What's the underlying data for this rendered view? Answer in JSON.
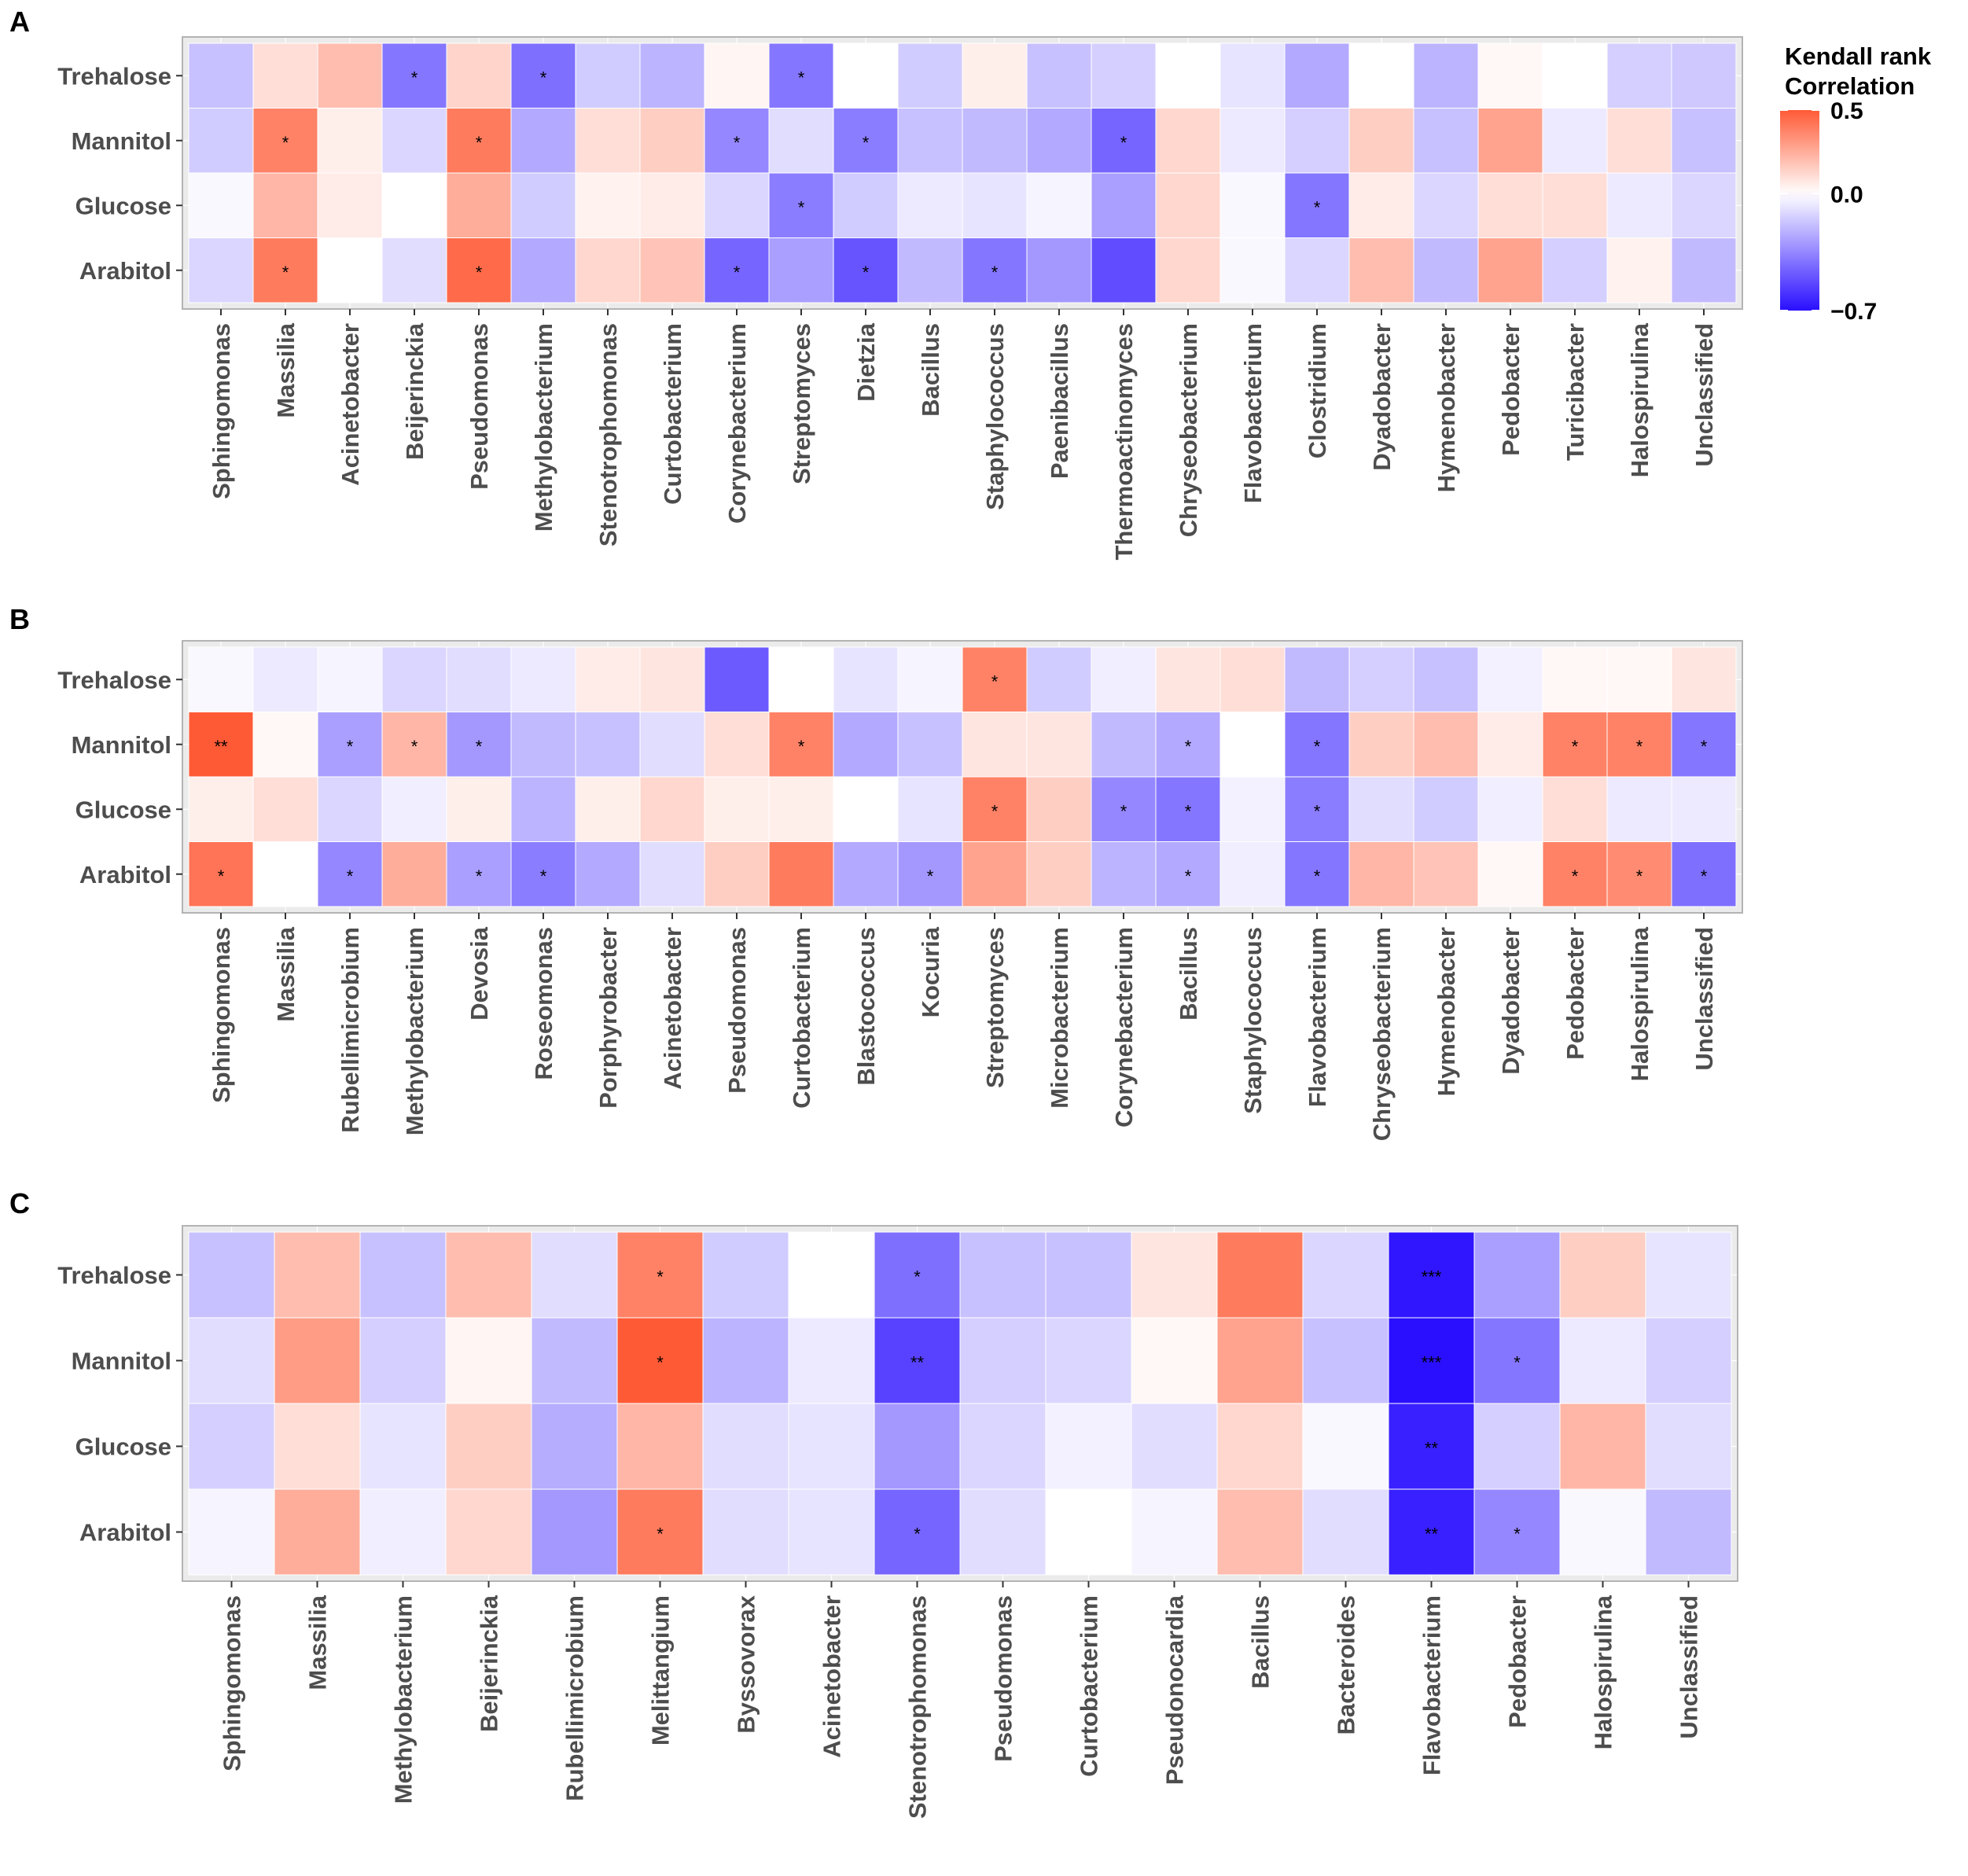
{
  "figure": {
    "legend": {
      "title_line1": "Kendall rank",
      "title_line2": "Correlation",
      "max": 0.5,
      "min": -0.7,
      "ticks": [
        {
          "value": 0.5,
          "label": "0.5"
        },
        {
          "value": 0.0,
          "label": "0.0"
        },
        {
          "value": -0.7,
          "label": "−0.7"
        }
      ],
      "colors": {
        "positive": "#ff5a36",
        "neutral": "#ffffff",
        "negative": "#2a0fff"
      }
    }
  },
  "chart_data": [
    {
      "type": "heatmap",
      "panel": "A",
      "rows": [
        "Trehalose",
        "Mannitol",
        "Glucose",
        "Arabitol"
      ],
      "columns": [
        "Sphingomonas",
        "Massilia",
        "Acinetobacter",
        "Beijerinckia",
        "Pseudomonas",
        "Methylobacterium",
        "Stenotrophomonas",
        "Curtobacterium",
        "Corynebacterium",
        "Streptomyces",
        "Dietzia",
        "Bacillus",
        "Staphylococcus",
        "Paenibacillus",
        "Thermoactinomyces",
        "Chryseobacterium",
        "Flavobacterium",
        "Clostridium",
        "Dyadobacter",
        "Hymenobacter",
        "Pedobacter",
        "Turicibacter",
        "Halospirulina",
        "Unclassified"
      ],
      "values": [
        [
          -0.18,
          0.1,
          0.2,
          -0.4,
          0.13,
          -0.42,
          -0.15,
          -0.22,
          0.03,
          -0.4,
          0.0,
          -0.15,
          0.05,
          -0.18,
          -0.14,
          0.0,
          -0.08,
          -0.25,
          0.0,
          -0.22,
          0.02,
          0.0,
          -0.14,
          -0.16
        ],
        [
          -0.15,
          0.38,
          0.05,
          -0.12,
          0.4,
          -0.25,
          0.1,
          0.15,
          -0.35,
          -0.1,
          -0.38,
          -0.18,
          -0.2,
          -0.25,
          -0.45,
          0.12,
          -0.06,
          -0.14,
          0.15,
          -0.18,
          0.28,
          -0.06,
          0.1,
          -0.18
        ],
        [
          -0.02,
          0.22,
          0.06,
          -0.15,
          0.25,
          -0.15,
          0.04,
          0.06,
          -0.12,
          -0.38,
          -0.15,
          -0.06,
          -0.08,
          -0.03,
          -0.28,
          0.12,
          -0.02,
          -0.4,
          0.06,
          -0.12,
          0.1,
          0.1,
          -0.06,
          -0.12
        ],
        [
          -0.12,
          0.4,
          0.0,
          -0.1,
          0.45,
          -0.25,
          0.12,
          0.18,
          -0.45,
          -0.28,
          -0.5,
          -0.2,
          -0.4,
          -0.3,
          -0.52,
          0.12,
          -0.02,
          -0.12,
          0.2,
          -0.2,
          0.28,
          -0.14,
          0.04,
          -0.2
        ]
      ],
      "significance": [
        [
          "",
          "",
          "",
          "*",
          "",
          "*",
          "",
          "",
          "",
          "*",
          "",
          "",
          "",
          "",
          "",
          "",
          "",
          "",
          "",
          "",
          "",
          "",
          "",
          ""
        ],
        [
          "",
          "*",
          "",
          "",
          "*",
          "",
          "",
          "",
          "*",
          "",
          "*",
          "",
          "",
          "",
          "*",
          "",
          "",
          "",
          "",
          "",
          "",
          "",
          "",
          ""
        ],
        [
          "",
          "",
          "",
          "",
          "",
          "",
          "",
          "",
          "",
          "*",
          "",
          "",
          "",
          "",
          "",
          "",
          "",
          "*",
          "",
          "",
          "",
          "",
          "",
          ""
        ],
        [
          "",
          "*",
          "",
          "",
          "*",
          "",
          "",
          "",
          "*",
          "",
          "*",
          "",
          "*",
          "",
          "",
          "",
          "",
          "",
          "",
          "",
          "",
          "",
          "",
          ""
        ]
      ],
      "missing": [
        [
          2,
          3
        ],
        [
          0,
          10
        ],
        [
          0,
          15
        ],
        [
          0,
          18
        ],
        [
          0,
          21
        ]
      ]
    },
    {
      "type": "heatmap",
      "panel": "B",
      "rows": [
        "Trehalose",
        "Mannitol",
        "Glucose",
        "Arabitol"
      ],
      "columns": [
        "Sphingomonas",
        "Massilia",
        "Rubellimicrobium",
        "Methylobacterium",
        "Devosia",
        "Roseomonas",
        "Porphyrobacter",
        "Acinetobacter",
        "Pseudomonas",
        "Curtobacterium",
        "Blastococcus",
        "Kocuria",
        "Streptomyces",
        "Microbacterium",
        "Corynebacterium",
        "Bacillus",
        "Staphylococcus",
        "Flavobacterium",
        "Chryseobacterium",
        "Hymenobacter",
        "Dyadobacter",
        "Pedobacter",
        "Halospirulina",
        "Unclassified"
      ],
      "values": [
        [
          -0.02,
          -0.06,
          -0.03,
          -0.12,
          -0.1,
          -0.06,
          0.06,
          0.08,
          -0.48,
          0.0,
          -0.08,
          -0.03,
          0.38,
          -0.15,
          -0.05,
          0.08,
          0.1,
          -0.2,
          -0.14,
          -0.18,
          -0.04,
          0.02,
          0.02,
          0.08
        ],
        [
          0.5,
          0.02,
          -0.28,
          0.22,
          -0.3,
          -0.2,
          -0.18,
          -0.1,
          0.1,
          0.38,
          -0.25,
          -0.18,
          0.08,
          0.08,
          -0.2,
          -0.25,
          0.0,
          -0.4,
          0.15,
          0.2,
          0.06,
          0.38,
          0.38,
          -0.4
        ],
        [
          0.05,
          0.1,
          -0.12,
          -0.05,
          0.05,
          -0.22,
          0.05,
          0.12,
          0.05,
          0.05,
          0.0,
          -0.08,
          0.38,
          0.15,
          -0.35,
          -0.4,
          -0.04,
          -0.38,
          -0.1,
          -0.15,
          -0.05,
          0.1,
          -0.06,
          -0.06
        ],
        [
          0.42,
          0.0,
          -0.35,
          0.25,
          -0.28,
          -0.38,
          -0.25,
          -0.1,
          0.15,
          0.4,
          -0.25,
          -0.3,
          0.28,
          0.15,
          -0.22,
          -0.25,
          -0.05,
          -0.4,
          0.22,
          0.18,
          0.02,
          0.38,
          0.35,
          -0.42
        ]
      ],
      "significance": [
        [
          "",
          "",
          "",
          "",
          "",
          "",
          "",
          "",
          "",
          "",
          "",
          "",
          "*",
          "",
          "",
          "",
          "",
          "",
          "",
          "",
          "",
          "",
          "",
          ""
        ],
        [
          "**",
          "",
          "*",
          "*",
          "*",
          "",
          "",
          "",
          "",
          "*",
          "",
          "",
          "",
          "",
          "",
          "*",
          "",
          "*",
          "",
          "",
          "",
          "*",
          "*",
          "*"
        ],
        [
          "",
          "",
          "",
          "",
          "",
          "",
          "",
          "",
          "",
          "",
          "",
          "",
          "*",
          "",
          "*",
          "*",
          "",
          "*",
          "",
          "",
          "",
          "",
          "",
          ""
        ],
        [
          "*",
          "",
          "*",
          "",
          "*",
          "*",
          "",
          "",
          "",
          "",
          "",
          "*",
          "",
          "",
          "",
          "*",
          "",
          "*",
          "",
          "",
          "",
          "*",
          "*",
          "*"
        ]
      ],
      "missing": [
        [
          2,
          10
        ]
      ]
    },
    {
      "type": "heatmap",
      "panel": "C",
      "rows": [
        "Trehalose",
        "Mannitol",
        "Glucose",
        "Arabitol"
      ],
      "columns": [
        "Sphingomonas",
        "Massilia",
        "Methylobacterium",
        "Beijerinckia",
        "Rubellimicrobium",
        "Melittangium",
        "Byssovorax",
        "Acinetobacter",
        "Stenotrophomonas",
        "Pseudomonas",
        "Curtobacterium",
        "Pseudonocardia",
        "Bacillus",
        "Bacteroides",
        "Flavobacterium",
        "Pedobacter",
        "Halospirulina",
        "Unclassified"
      ],
      "values": [
        [
          -0.18,
          0.2,
          -0.18,
          0.2,
          -0.1,
          0.38,
          -0.15,
          0.0,
          -0.42,
          -0.18,
          -0.18,
          0.08,
          0.4,
          -0.12,
          -0.68,
          -0.28,
          0.15,
          -0.08
        ],
        [
          -0.1,
          0.3,
          -0.14,
          0.03,
          -0.2,
          0.5,
          -0.22,
          -0.06,
          -0.55,
          -0.14,
          -0.12,
          0.02,
          0.28,
          -0.18,
          -0.7,
          -0.4,
          -0.06,
          -0.14
        ],
        [
          -0.14,
          0.1,
          -0.08,
          0.15,
          -0.24,
          0.22,
          -0.1,
          -0.08,
          -0.3,
          -0.12,
          -0.04,
          -0.1,
          0.12,
          -0.02,
          -0.65,
          -0.14,
          0.22,
          -0.1
        ],
        [
          -0.03,
          0.25,
          -0.05,
          0.12,
          -0.3,
          0.4,
          -0.1,
          -0.08,
          -0.45,
          -0.1,
          0.0,
          -0.03,
          0.2,
          -0.1,
          -0.65,
          -0.35,
          -0.02,
          -0.2
        ]
      ],
      "significance": [
        [
          "",
          "",
          "",
          "",
          "",
          "*",
          "",
          "",
          "*",
          "",
          "",
          "",
          "",
          "",
          "***",
          "",
          "",
          ""
        ],
        [
          "",
          "",
          "",
          "",
          "",
          "*",
          "",
          "",
          "**",
          "",
          "",
          "",
          "",
          "",
          "***",
          "*",
          "",
          ""
        ],
        [
          "",
          "",
          "",
          "",
          "",
          "",
          "",
          "",
          "",
          "",
          "",
          "",
          "",
          "",
          "**",
          "",
          "",
          ""
        ],
        [
          "",
          "",
          "",
          "",
          "",
          "*",
          "",
          "",
          "*",
          "",
          "",
          "",
          "",
          "",
          "**",
          "*",
          "",
          ""
        ]
      ],
      "missing": [
        [
          3,
          10
        ]
      ]
    }
  ]
}
